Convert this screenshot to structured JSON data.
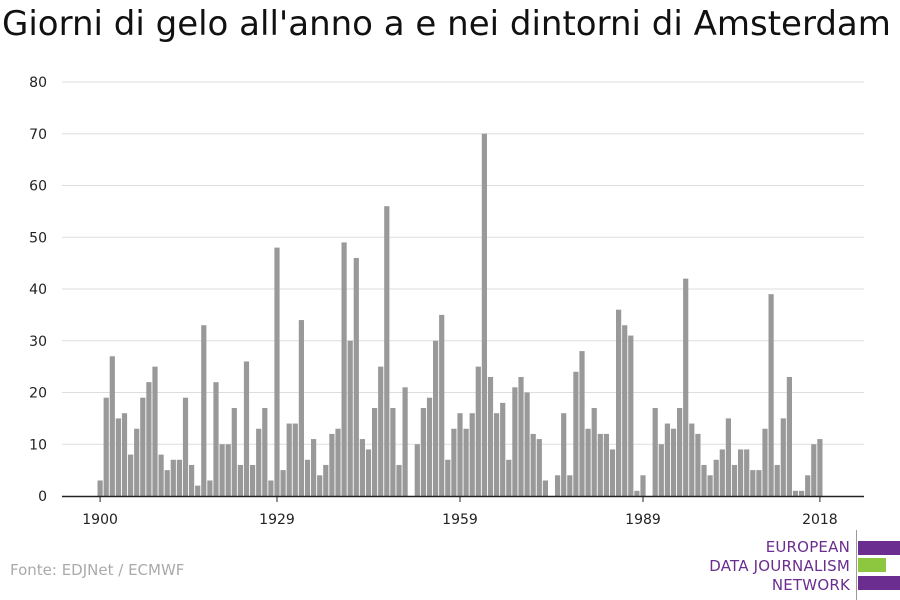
{
  "title": "Giorni di gelo all'anno a e nei dintorni di Amsterdam",
  "source": "Fonte: EDJNet / ECMWF",
  "logo": {
    "line1": "EUROPEAN",
    "line2": "DATA JOURNALISM",
    "line3": "NETWORK"
  },
  "colors": {
    "bar": "#999999",
    "grid": "#dddddd",
    "axis": "#222222",
    "logo_purple": "#6b2d8f",
    "logo_green": "#8dc63f"
  },
  "chart_data": {
    "type": "bar",
    "title": "Giorni di gelo all'anno a e nei dintorni di Amsterdam",
    "xlabel": "",
    "ylabel": "",
    "x_tick_labels": [
      "1900",
      "1929",
      "1959",
      "1989",
      "2018"
    ],
    "y_ticks": [
      0,
      10,
      20,
      30,
      40,
      50,
      60,
      70,
      80
    ],
    "ylim": [
      0,
      80
    ],
    "grid": true,
    "start_year": 1900,
    "values": [
      3,
      19,
      27,
      15,
      16,
      8,
      13,
      19,
      22,
      25,
      8,
      5,
      7,
      7,
      19,
      6,
      2,
      33,
      3,
      22,
      10,
      10,
      17,
      6,
      26,
      6,
      13,
      17,
      3,
      48,
      5,
      14,
      14,
      34,
      7,
      11,
      4,
      6,
      12,
      13,
      49,
      30,
      46,
      11,
      9,
      17,
      25,
      56,
      17,
      6,
      21,
      0,
      10,
      17,
      19,
      30,
      35,
      7,
      13,
      16,
      13,
      16,
      25,
      70,
      23,
      16,
      18,
      7,
      21,
      23,
      20,
      12,
      11,
      3,
      0,
      4,
      16,
      4,
      24,
      28,
      13,
      17,
      12,
      12,
      9,
      36,
      33,
      31,
      1,
      4,
      0,
      17,
      10,
      14,
      13,
      17,
      42,
      14,
      12,
      6,
      4,
      7,
      9,
      15,
      6,
      9,
      9,
      5,
      5,
      13,
      39,
      6,
      15,
      23,
      1,
      1,
      4,
      10,
      11
    ]
  }
}
